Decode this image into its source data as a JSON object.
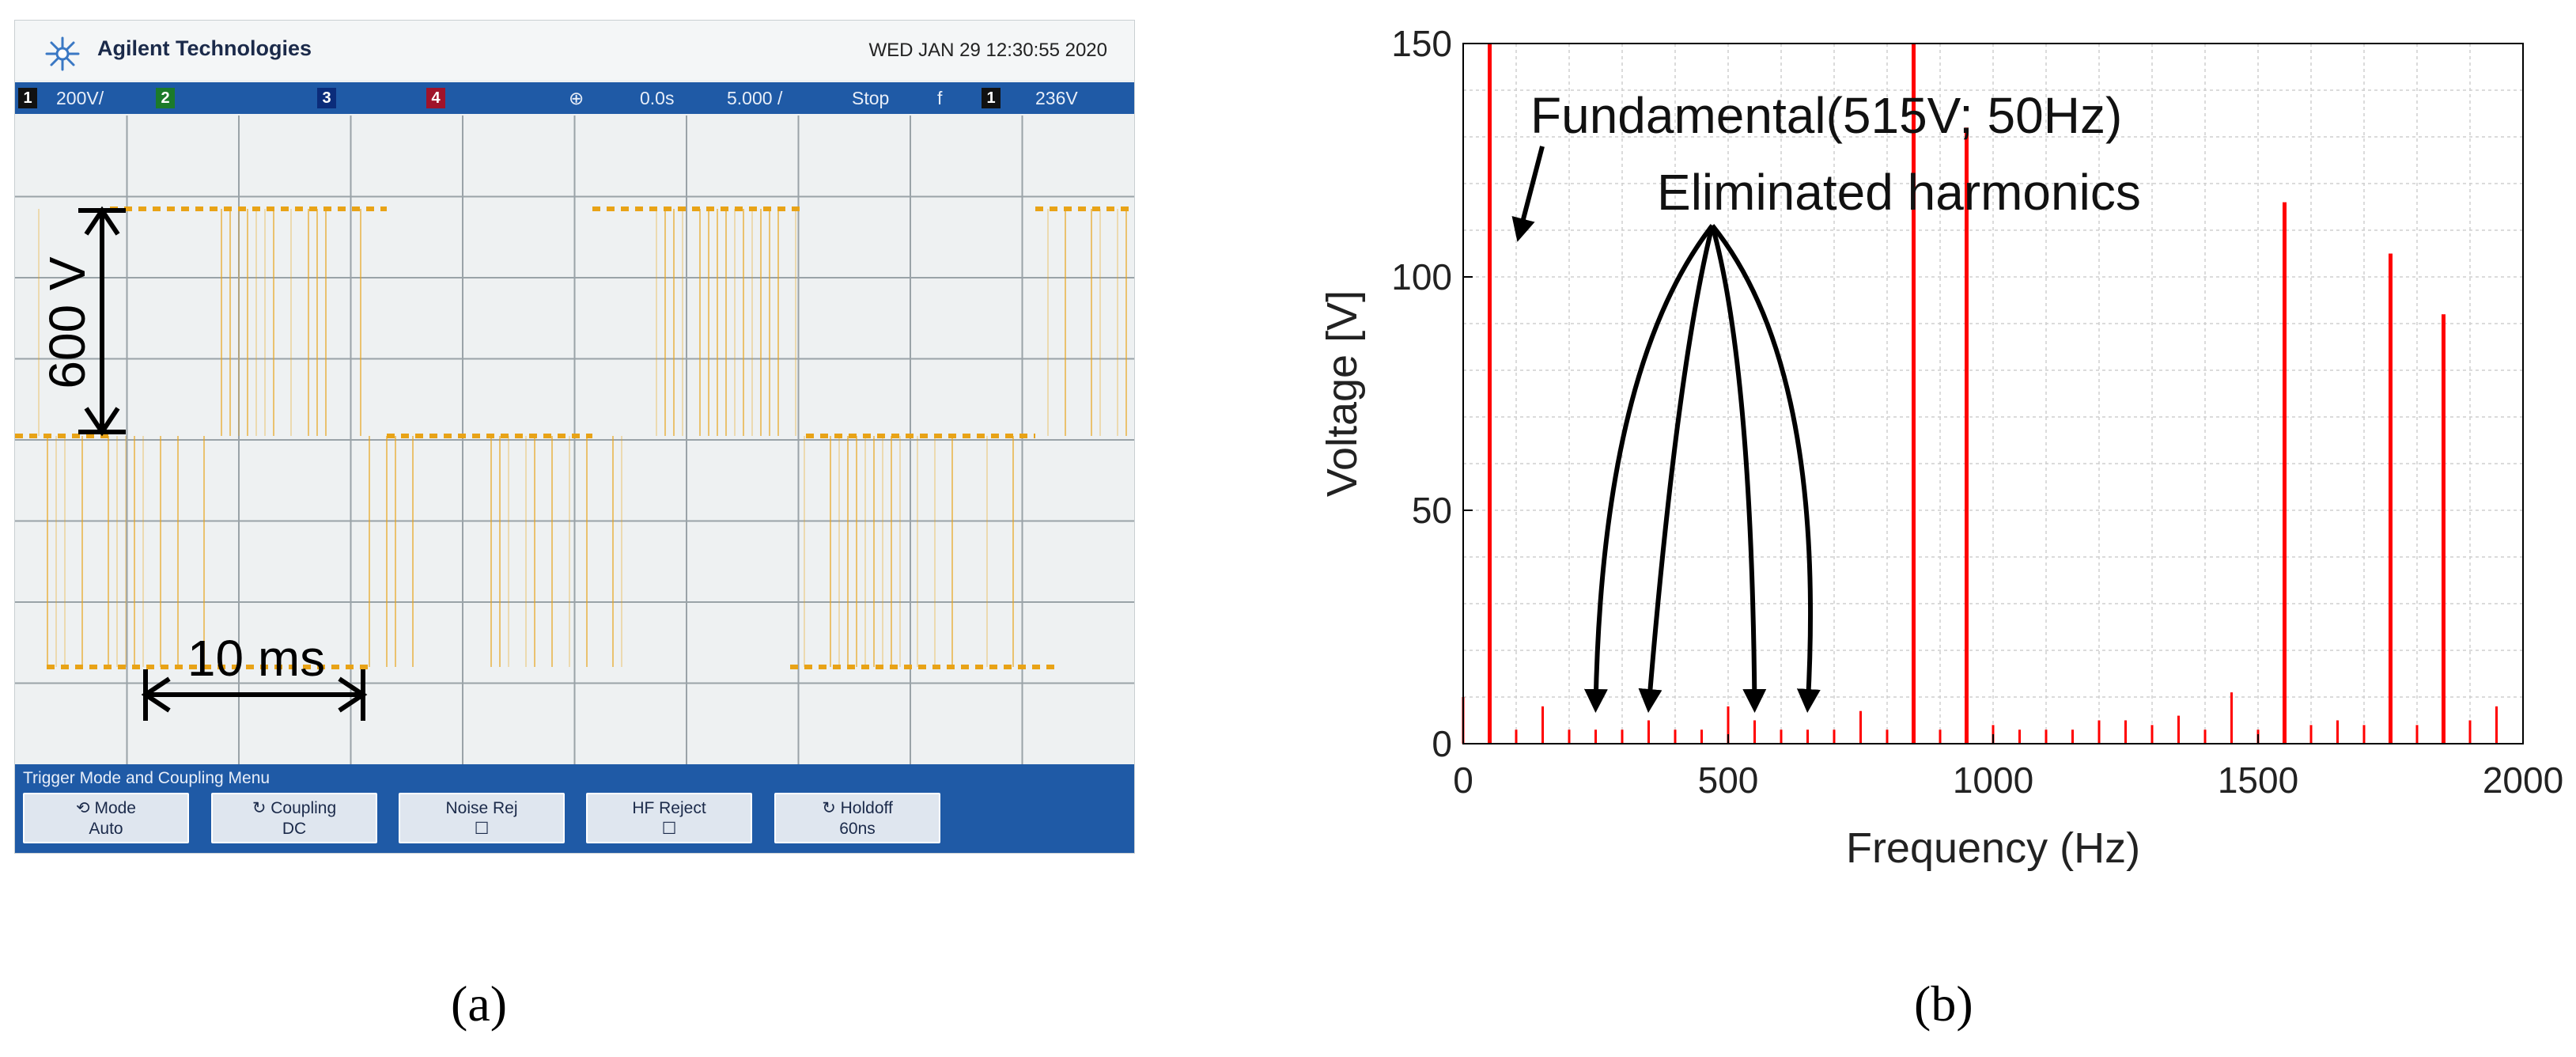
{
  "captions": {
    "a": "(a)",
    "b": "(b)"
  },
  "oscilloscope": {
    "brand": "Agilent Technologies",
    "datetime": "WED JAN 29 12:30:55 2020",
    "status": {
      "ch1": "1",
      "scale": "200V/",
      "ch2": "2",
      "ch3": "3",
      "ch4": "4",
      "delay": "0.0s",
      "timebase": "5.000 /",
      "run": "Stop",
      "slope": "f",
      "trig_ch": "1",
      "trig_level": "236V"
    },
    "annotations": {
      "amplitude": "600 V",
      "period": "10 ms"
    },
    "menu_title": "Trigger Mode and Coupling Menu",
    "softkeys": [
      {
        "line1": "Mode",
        "line2": "Auto",
        "icon": "mode-icon"
      },
      {
        "line1": "Coupling",
        "line2": "DC",
        "icon": "rotate-icon"
      },
      {
        "line1": "Noise Rej",
        "line2": "☐"
      },
      {
        "line1": "HF Reject",
        "line2": "☐"
      },
      {
        "line1": "Holdoff",
        "line2": "60ns",
        "icon": "rotate-icon"
      }
    ],
    "colors": {
      "trace": "#e8a317",
      "menu": "#1f5aa6",
      "screen": "#eef1f2"
    }
  },
  "chart_data": {
    "type": "bar",
    "xlabel": "Frequency (Hz)",
    "ylabel": "Voltage [V]",
    "xlim": [
      0,
      2000
    ],
    "ylim": [
      0,
      150
    ],
    "xticks": [
      0,
      500,
      1000,
      1500,
      2000
    ],
    "yticks": [
      0,
      50,
      100,
      150
    ],
    "grid": true,
    "color": "#ff0000",
    "annotations": {
      "fundamental": "Fundamental(515V; 50Hz)",
      "eliminated": "Eliminated harmonics"
    },
    "eliminated_harmonics_hz": [
      250,
      350,
      550,
      650
    ],
    "x": [
      0,
      50,
      100,
      150,
      200,
      250,
      300,
      350,
      400,
      450,
      500,
      550,
      600,
      650,
      700,
      750,
      800,
      850,
      900,
      950,
      1000,
      1050,
      1100,
      1150,
      1200,
      1250,
      1300,
      1350,
      1400,
      1450,
      1500,
      1550,
      1600,
      1650,
      1700,
      1750,
      1800,
      1850,
      1900,
      1950
    ],
    "values": [
      10,
      150,
      3,
      8,
      3,
      3,
      3,
      5,
      3,
      3,
      8,
      5,
      3,
      3,
      3,
      7,
      3,
      150,
      3,
      132,
      4,
      3,
      3,
      3,
      5,
      5,
      4,
      6,
      3,
      11,
      3,
      116,
      4,
      5,
      4,
      105,
      4,
      92,
      5,
      8
    ]
  }
}
